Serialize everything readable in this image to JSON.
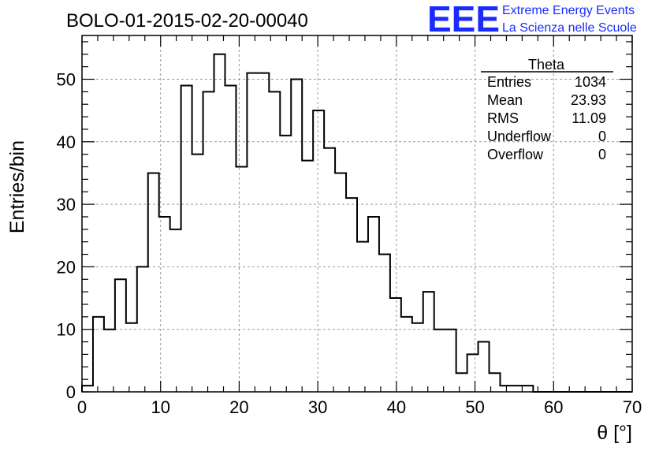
{
  "chart_data": {
    "type": "histogram",
    "title": "BOLO-01-2015-02-20-00040",
    "xlabel": "θ [°]",
    "ylabel": "Entries/bin",
    "xlim": [
      0,
      70
    ],
    "ylim": [
      0,
      57
    ],
    "bin_width": 1.4,
    "bin_start": 0,
    "values": [
      1,
      12,
      10,
      18,
      11,
      20,
      35,
      28,
      26,
      49,
      38,
      48,
      54,
      49,
      36,
      51,
      51,
      48,
      41,
      50,
      37,
      45,
      39,
      35,
      31,
      24,
      28,
      22,
      15,
      12,
      11,
      16,
      10,
      10,
      3,
      6,
      8,
      3,
      1,
      1,
      1,
      0,
      0,
      0,
      0,
      0,
      0,
      0,
      0,
      0
    ],
    "x_ticks": [
      0,
      10,
      20,
      30,
      40,
      50,
      60,
      70
    ],
    "y_ticks": [
      0,
      10,
      20,
      30,
      40,
      50
    ],
    "grid": true,
    "line_color": "#000000"
  },
  "stats_box": {
    "name": "Theta",
    "rows": [
      {
        "label": "Entries",
        "value": "1034"
      },
      {
        "label": "Mean",
        "value": "23.93"
      },
      {
        "label": "RMS",
        "value": "11.09"
      },
      {
        "label": "Underflow",
        "value": "0"
      },
      {
        "label": "Overflow",
        "value": "0"
      }
    ]
  },
  "logo": {
    "mark": "EEE",
    "line1": "Extreme Energy Events",
    "line2": "La Scienza nelle Scuole",
    "color": "#1a2bff"
  }
}
